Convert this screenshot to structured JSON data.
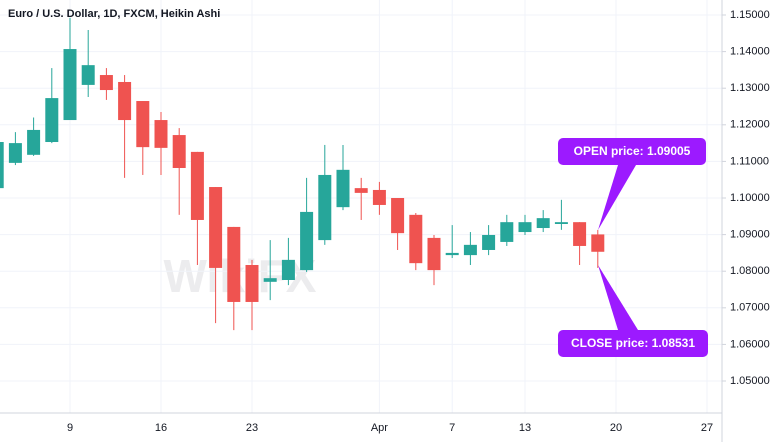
{
  "chart_data": {
    "type": "candlestick",
    "title": "Euro / U.S. Dollar, 1D, FXCM, Heikin Ashi",
    "watermark": "WikiFX",
    "categories": [
      null,
      null,
      null,
      null,
      "9",
      null,
      null,
      null,
      null,
      "16",
      null,
      null,
      null,
      null,
      "23",
      null,
      null,
      null,
      null,
      null,
      null,
      "Apr",
      null,
      null,
      null,
      "7",
      null,
      null,
      null,
      "13",
      null,
      null,
      null,
      null,
      "20",
      null,
      null,
      null,
      null,
      "27"
    ],
    "open": [
      1.1027,
      1.1096,
      1.1118,
      1.1153,
      1.1213,
      1.1309,
      1.1336,
      1.1317,
      1.1265,
      1.1213,
      1.1172,
      1.1126,
      1.103,
      1.0921,
      1.0817,
      1.0771,
      1.0776,
      1.0803,
      1.0885,
      1.0975,
      1.1027,
      1.1022,
      1.1,
      1.0954,
      1.0891,
      1.0844,
      1.0844,
      1.0858,
      1.088,
      1.0907,
      1.0918,
      1.0929,
      1.0934,
      1.09005,
      null,
      null,
      null,
      null,
      null,
      null
    ],
    "high": [
      1.116,
      1.118,
      1.122,
      1.1355,
      1.1492,
      1.1459,
      1.1355,
      1.1336,
      1.1265,
      1.1235,
      1.1191,
      1.1126,
      1.103,
      1.0921,
      1.0831,
      1.0885,
      1.0891,
      1.1055,
      1.1145,
      1.1145,
      1.1055,
      1.1044,
      1.1,
      1.0959,
      1.0899,
      1.0926,
      1.0907,
      1.0926,
      1.0954,
      1.0954,
      1.0967,
      1.0995,
      1.0934,
      1.0913,
      null,
      null,
      null,
      null,
      null,
      null
    ],
    "low": [
      1.102,
      1.109,
      1.1115,
      1.115,
      1.1213,
      1.1276,
      1.1268,
      1.1055,
      1.1063,
      1.1063,
      1.0954,
      1.0817,
      1.0658,
      1.0639,
      1.0639,
      1.0721,
      1.0762,
      1.0798,
      1.0872,
      1.0967,
      1.094,
      1.0954,
      1.0858,
      1.0803,
      1.0762,
      1.0836,
      1.0817,
      1.0844,
      1.0869,
      1.0899,
      1.0907,
      1.0913,
      1.0817,
      1.0809,
      null,
      null,
      null,
      null,
      null,
      null
    ],
    "close": [
      1.1153,
      1.115,
      1.1186,
      1.1273,
      1.1407,
      1.1363,
      1.1295,
      1.1213,
      1.1139,
      1.1137,
      1.1082,
      1.094,
      1.0809,
      1.0716,
      1.0716,
      1.0781,
      1.0831,
      1.0962,
      1.1063,
      1.1077,
      1.1014,
      1.0981,
      1.0904,
      1.0822,
      1.0803,
      1.085,
      1.0872,
      1.0899,
      1.0934,
      1.0934,
      1.0945,
      1.0934,
      1.0869,
      1.08531,
      null,
      null,
      null,
      null,
      null,
      null
    ],
    "up_color": "#26a69a",
    "down_color": "#ef5350",
    "ylim": [
      1.04126,
      1.1541
    ],
    "yticks": [
      {
        "value": 1.05,
        "label": "1.05000"
      },
      {
        "value": 1.06,
        "label": "1.06000"
      },
      {
        "value": 1.07,
        "label": "1.07000"
      },
      {
        "value": 1.08,
        "label": "1.08000"
      },
      {
        "value": 1.09,
        "label": "1.09000"
      },
      {
        "value": 1.1,
        "label": "1.10000"
      },
      {
        "value": 1.11,
        "label": "1.11000"
      },
      {
        "value": 1.12,
        "label": "1.12000"
      },
      {
        "value": 1.13,
        "label": "1.13000"
      },
      {
        "value": 1.14,
        "label": "1.14000"
      },
      {
        "value": 1.15,
        "label": "1.15000"
      }
    ],
    "grid": true,
    "annotations": [
      {
        "text": "OPEN price: 1.09005",
        "color": "#9c1aff"
      },
      {
        "text": "CLOSE price: 1.08531",
        "color": "#9c1aff"
      }
    ]
  }
}
